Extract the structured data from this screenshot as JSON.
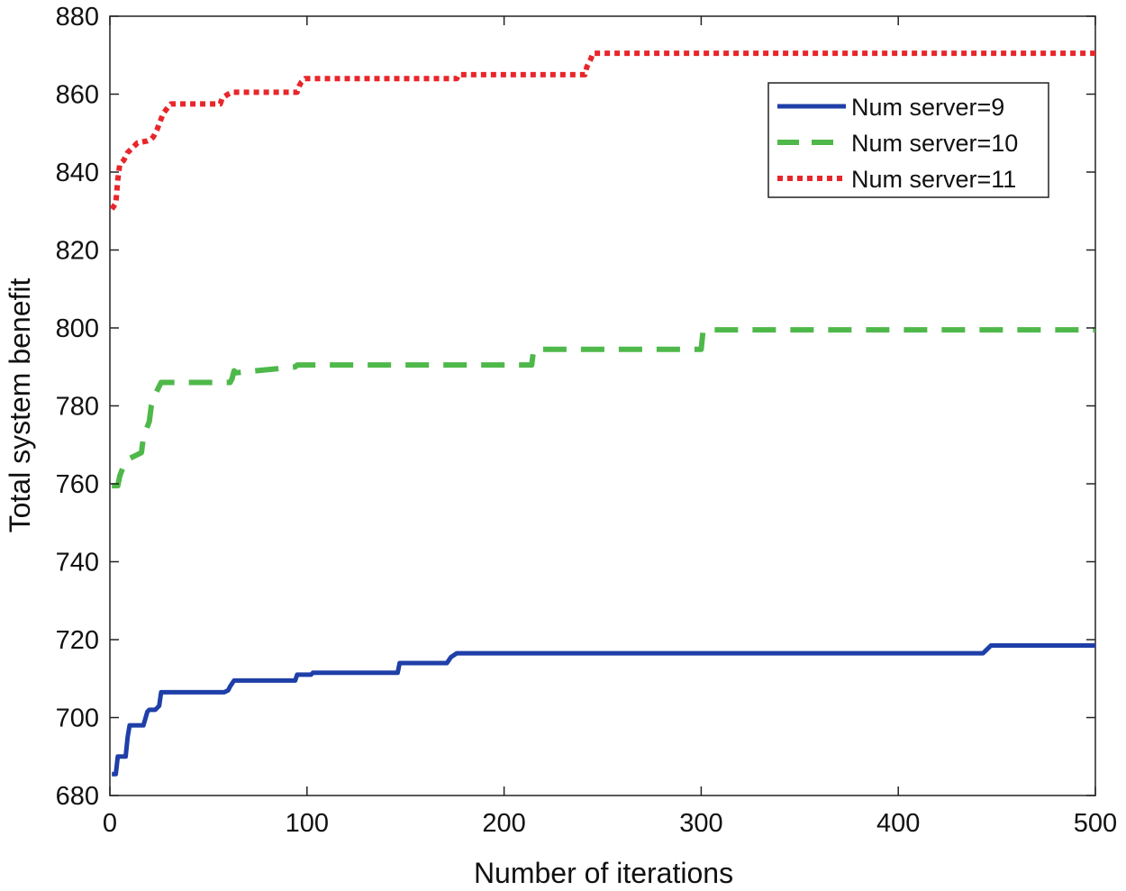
{
  "chart_data": {
    "type": "line",
    "title": "",
    "xlabel": "Number of iterations",
    "ylabel": "Total system benefit",
    "xlim": [
      0,
      500
    ],
    "ylim": [
      680,
      880
    ],
    "xticks": [
      0,
      100,
      200,
      300,
      400,
      500
    ],
    "yticks": [
      680,
      700,
      720,
      740,
      760,
      780,
      800,
      820,
      840,
      860,
      880
    ],
    "grid": false,
    "legend_position": "top-right",
    "series": [
      {
        "name": "Num server=9",
        "color": "#1f3fa8",
        "style": "solid",
        "x": [
          1,
          3,
          4,
          8,
          9,
          10,
          17,
          19,
          20,
          23,
          25,
          26,
          58,
          60,
          61,
          63,
          94,
          95,
          102,
          103,
          146,
          147,
          171,
          173,
          176,
          443,
          445,
          447,
          500
        ],
        "y": [
          685.5,
          685.5,
          690,
          690,
          695,
          698,
          698,
          701.5,
          702,
          702,
          703,
          706.5,
          706.5,
          707,
          708,
          709.5,
          709.5,
          711,
          711,
          711.5,
          711.5,
          714,
          714,
          715.5,
          716.5,
          716.5,
          717.5,
          718.5,
          718.5
        ]
      },
      {
        "name": "Num server=10",
        "color": "#4fb84a",
        "style": "dashed",
        "x": [
          1,
          4,
          5,
          8,
          16,
          17,
          20,
          21,
          23,
          25,
          26,
          28,
          61,
          62,
          63,
          64,
          94,
          95,
          214,
          215,
          300,
          301,
          500
        ],
        "y": [
          759.5,
          759.5,
          762,
          766,
          768,
          772,
          776,
          780,
          783,
          785,
          786,
          786,
          786,
          787,
          789,
          788.5,
          790,
          790.5,
          790.5,
          794.5,
          794.5,
          799.5,
          799.5
        ]
      },
      {
        "name": "Num server=11",
        "color": "#e8262b",
        "style": "dotted",
        "x": [
          1,
          3,
          4,
          5,
          7,
          9,
          14,
          19,
          21,
          22,
          24,
          27,
          30,
          31,
          56,
          57,
          60,
          62,
          63,
          95,
          96,
          97,
          99,
          176,
          177,
          241,
          242,
          244,
          245,
          500
        ],
        "y": [
          830.5,
          832,
          838,
          842,
          843,
          845,
          847.5,
          848,
          848.5,
          849,
          851,
          855,
          857,
          857.5,
          857.5,
          859,
          860,
          860.5,
          860.5,
          860.5,
          862,
          863,
          864,
          864,
          865,
          865,
          867,
          869,
          870.5,
          870.5
        ]
      }
    ]
  }
}
